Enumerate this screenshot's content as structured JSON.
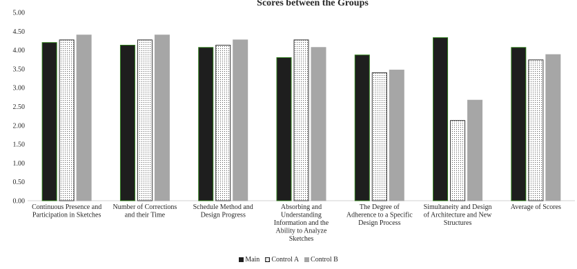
{
  "chart_data": {
    "type": "bar",
    "title": "Scores between the Groups",
    "ylim": [
      0,
      5
    ],
    "yticks": [
      "0.00",
      "0.50",
      "1.00",
      "1.50",
      "2.00",
      "2.50",
      "3.00",
      "3.50",
      "4.00",
      "4.50",
      "5.00"
    ],
    "categories": [
      [
        "Continuous Presence and",
        "Participation in Sketches"
      ],
      [
        "Number of Corrections",
        "and their Time"
      ],
      [
        "Schedule Method and",
        "Design Progress"
      ],
      [
        "Absorbing and",
        "Understanding",
        "Information and the",
        "Ability to Analyze",
        "Sketches"
      ],
      [
        "The Degree of",
        "Adherence to a Specific",
        "Design Process"
      ],
      [
        "Simultaneity and Design",
        "of Architecture and New",
        "Structures"
      ],
      [
        "Average of Scores"
      ]
    ],
    "series": [
      {
        "name": "Main",
        "color": "#1e1e1e",
        "values": [
          4.2,
          4.13,
          4.07,
          3.8,
          3.87,
          4.33,
          4.07
        ]
      },
      {
        "name": "Control A",
        "color": "#ffffff",
        "values": [
          4.27,
          4.27,
          4.13,
          4.27,
          3.4,
          2.13,
          3.74
        ]
      },
      {
        "name": "Control B",
        "color": "#a6a6a6",
        "values": [
          4.4,
          4.4,
          4.27,
          4.07,
          3.47,
          2.67,
          3.88
        ]
      }
    ],
    "grid": false,
    "legend_position": "bottom"
  }
}
